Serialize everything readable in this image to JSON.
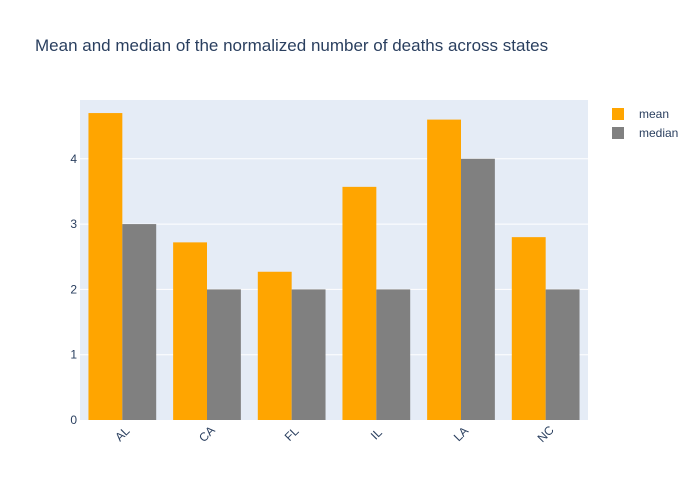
{
  "chart_data": {
    "type": "bar",
    "title": "Mean and median of the normalized number of deaths across states",
    "xlabel": "",
    "ylabel": "",
    "categories": [
      "AL",
      "CA",
      "FL",
      "IL",
      "LA",
      "NC"
    ],
    "series": [
      {
        "name": "mean",
        "color": "#FFA500",
        "values": [
          4.7,
          2.72,
          2.27,
          3.57,
          4.6,
          2.8
        ]
      },
      {
        "name": "median",
        "color": "#808080",
        "values": [
          3,
          2,
          2,
          2,
          4,
          2
        ]
      }
    ],
    "ylim": [
      0,
      4.9
    ],
    "yticks": [
      0,
      1,
      2,
      3,
      4
    ],
    "grid": true,
    "legend_position": "top-right",
    "plot_background": "#E5ECF6",
    "tick_label_rotation": -45
  }
}
